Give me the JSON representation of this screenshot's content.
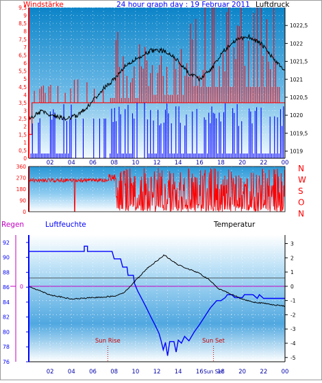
{
  "header": {
    "left_label": "Windstärke",
    "title": "24 hour graph day : 19 Februar 2011",
    "right_label": "Luftdruck"
  },
  "chart_data": [
    {
      "id": "wind-pressure",
      "type": "line",
      "title": "24 hour graph day : 19 Februar 2011",
      "x": {
        "ticks": [
          "02",
          "04",
          "06",
          "08",
          "10",
          "12",
          "14",
          "16",
          "18",
          "20",
          "22",
          "00"
        ]
      },
      "left_axis": {
        "label": "Windstärke",
        "range": [
          0,
          9.5
        ],
        "ticks": [
          "0",
          "0,5",
          "1",
          "1,5",
          "2",
          "2,5",
          "3",
          "3,5",
          "4",
          "4,5",
          "5",
          "5,5",
          "6",
          "6,5",
          "7",
          "7,5",
          "8",
          "8,5",
          "9",
          "9,5"
        ]
      },
      "right_axis": {
        "label": "Luftdruck",
        "range": [
          1018.8,
          1023.0
        ],
        "ticks": [
          "1019",
          "1019,5",
          "1020",
          "1020,5",
          "1021",
          "1021,5",
          "1022",
          "1022,5"
        ]
      },
      "series": [
        {
          "color": "#ff0000",
          "shape": "gust spikes",
          "baseline": 3.5,
          "peak": 9.5
        },
        {
          "color": "#0000ff",
          "shape": "wind bars",
          "baseline": 0,
          "peak": 3.5
        },
        {
          "color": "#000000",
          "shape": "pressure",
          "values": [
            1019.9,
            1020.1,
            1020.0,
            1019.9,
            1020.0,
            1020.3,
            1020.7,
            1021.0,
            1021.4,
            1021.6,
            1021.8,
            1021.8,
            1021.6,
            1021.2,
            1021.0,
            1021.3,
            1021.8,
            1022.1,
            1022.2,
            1022.0,
            1021.6,
            1021.2
          ]
        }
      ]
    },
    {
      "id": "wind-direction",
      "type": "scatter",
      "y": {
        "range": [
          0,
          360
        ],
        "ticks": [
          "0",
          "90",
          "180",
          "270",
          "360"
        ]
      },
      "compass": [
        "N",
        "W",
        "S",
        "O",
        "N"
      ],
      "series": [
        {
          "color": "#ff0000"
        }
      ]
    },
    {
      "id": "humidity-temperature",
      "type": "line",
      "labels": {
        "rain": "Regen",
        "humidity": "Luftfeuchte",
        "temperature": "Temperatur"
      },
      "left_axis": {
        "label": "Luftfeuchte",
        "range": [
          76,
          93
        ],
        "ticks": [
          "76",
          "78",
          "80",
          "82",
          "84",
          "86",
          "88",
          "90",
          "92"
        ]
      },
      "right_axis": {
        "label": "Temperatur",
        "range": [
          -5.3,
          3.6
        ],
        "ticks": [
          "-5",
          "-4",
          "-3",
          "-2",
          "-1",
          "0",
          "1",
          "2",
          "3"
        ]
      },
      "rain_axis": {
        "label": "Regen",
        "value": "0"
      },
      "x": {
        "ticks": [
          "02",
          "04",
          "06",
          "08",
          "10",
          "12",
          "14",
          "16",
          "18",
          "20",
          "22",
          "00"
        ]
      },
      "markers": [
        {
          "label": "Sun Rise",
          "time": 7.4
        },
        {
          "label": "Sun Set",
          "time": 17.3
        }
      ],
      "x_extra_label": "Sun Set",
      "series": [
        {
          "name": "Luftfeuchte",
          "color": "#0000ff",
          "points": [
            [
              0,
              90.8
            ],
            [
              5.2,
              90.8
            ],
            [
              5.2,
              91.5
            ],
            [
              5.5,
              91.5
            ],
            [
              5.5,
              90.8
            ],
            [
              7.8,
              90.8
            ],
            [
              8.0,
              89.8
            ],
            [
              8.6,
              89.8
            ],
            [
              8.8,
              88.7
            ],
            [
              9.2,
              88.7
            ],
            [
              9.3,
              87.6
            ],
            [
              9.8,
              87.6
            ],
            [
              9.9,
              86.5
            ],
            [
              10.2,
              85.5
            ],
            [
              10.6,
              84.4
            ],
            [
              11.0,
              83.3
            ],
            [
              11.4,
              82.1
            ],
            [
              11.8,
              81.0
            ],
            [
              12.2,
              79.8
            ],
            [
              12.4,
              78.8
            ],
            [
              12.6,
              77.6
            ],
            [
              12.8,
              78.6
            ],
            [
              13.0,
              76.8
            ],
            [
              13.2,
              78.7
            ],
            [
              13.6,
              78.7
            ],
            [
              13.8,
              77.3
            ],
            [
              14.0,
              78.9
            ],
            [
              14.3,
              78.5
            ],
            [
              14.6,
              79.4
            ],
            [
              15.0,
              78.8
            ],
            [
              15.5,
              80.0
            ],
            [
              16.0,
              81.0
            ],
            [
              16.5,
              82.1
            ],
            [
              17.0,
              83.2
            ],
            [
              17.6,
              84.2
            ],
            [
              18.0,
              84.2
            ],
            [
              18.4,
              84.6
            ],
            [
              18.6,
              85.0
            ],
            [
              19.0,
              85.0
            ],
            [
              19.3,
              84.6
            ],
            [
              20.0,
              84.6
            ],
            [
              20.2,
              85.0
            ],
            [
              21.0,
              85.0
            ],
            [
              21.4,
              84.5
            ],
            [
              21.6,
              85.0
            ],
            [
              22.0,
              84.5
            ],
            [
              24.0,
              84.5
            ]
          ]
        },
        {
          "name": "Temperatur",
          "color": "#000000",
          "points": [
            [
              0,
              0.0
            ],
            [
              2,
              -0.6
            ],
            [
              4,
              -0.9
            ],
            [
              6,
              -0.8
            ],
            [
              8,
              -0.7
            ],
            [
              9,
              -0.4
            ],
            [
              10,
              0.4
            ],
            [
              11,
              1.2
            ],
            [
              12,
              1.8
            ],
            [
              12.7,
              2.2
            ],
            [
              13.4,
              1.8
            ],
            [
              14,
              1.5
            ],
            [
              15,
              1.2
            ],
            [
              16,
              0.9
            ],
            [
              17,
              0.4
            ],
            [
              17.8,
              -0.2
            ],
            [
              18.5,
              -0.4
            ],
            [
              20,
              -0.9
            ],
            [
              21,
              -1.1
            ],
            [
              22,
              -1.2
            ],
            [
              24,
              -1.4
            ]
          ]
        }
      ]
    }
  ]
}
